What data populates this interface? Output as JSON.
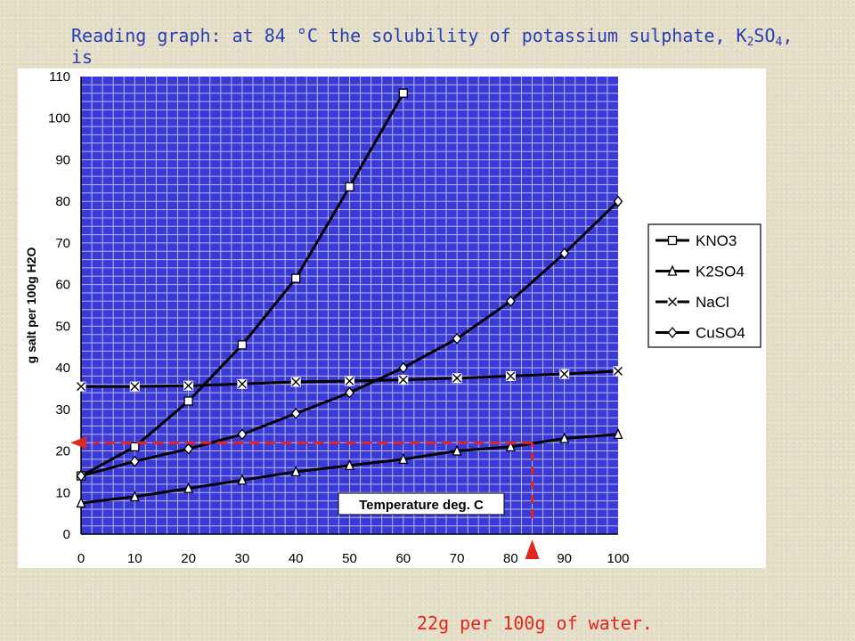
{
  "slide": {
    "title_prefix": "Reading graph: at 84 °C the solubility of potassium sulphate, K",
    "title_sub1": "2",
    "title_mid": "SO",
    "title_sub2": "4",
    "title_suffix": ", is",
    "answer": "22g per 100g of water."
  },
  "colors": {
    "plot_bg": "#3a3ad8",
    "grid": "#b8b8ec",
    "series_line": "#000000",
    "annotation": "#e0281e",
    "title": "#2a3fb5"
  },
  "chart_data": {
    "type": "line",
    "xlabel": "Temperature deg. C",
    "ylabel": "g salt per 100g H2O",
    "xlim": [
      0,
      100
    ],
    "ylim": [
      0,
      110
    ],
    "x_ticks": [
      "0",
      "10",
      "20",
      "30",
      "40",
      "50",
      "60",
      "70",
      "80",
      "90",
      "100"
    ],
    "y_ticks": [
      "0",
      "10",
      "20",
      "30",
      "40",
      "50",
      "60",
      "70",
      "80",
      "90",
      "100",
      "110"
    ],
    "grid": true,
    "legend_position": "right",
    "series": [
      {
        "name": "KNO3",
        "marker": "square",
        "x": [
          0,
          10,
          20,
          30,
          40,
          50,
          60
        ],
        "y": [
          14,
          21,
          32,
          45.5,
          61.5,
          83.5,
          106
        ]
      },
      {
        "name": "K2SO4",
        "marker": "triangle",
        "x": [
          0,
          10,
          20,
          30,
          40,
          50,
          60,
          70,
          80,
          90,
          100
        ],
        "y": [
          7.5,
          9,
          11,
          13,
          15,
          16.5,
          18,
          20,
          21,
          23,
          24
        ]
      },
      {
        "name": "NaCl",
        "marker": "x",
        "x": [
          0,
          10,
          20,
          30,
          40,
          50,
          60,
          70,
          80,
          90,
          100
        ],
        "y": [
          35.5,
          35.5,
          35.7,
          36.1,
          36.6,
          36.8,
          37.1,
          37.5,
          38,
          38.5,
          39.2
        ]
      },
      {
        "name": "CuSO4",
        "marker": "diamond",
        "x": [
          0,
          10,
          20,
          30,
          40,
          50,
          60,
          70,
          80,
          90,
          100
        ],
        "y": [
          14,
          17.5,
          20.5,
          24,
          29,
          34,
          40,
          47,
          56,
          67.5,
          80
        ]
      }
    ],
    "annotation": {
      "x": 84,
      "y": 22
    }
  }
}
